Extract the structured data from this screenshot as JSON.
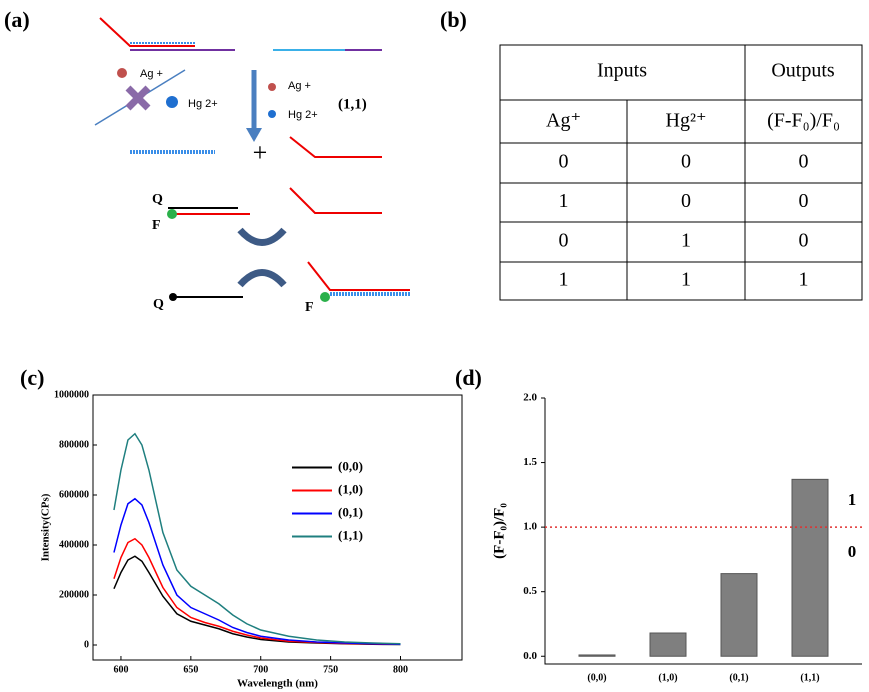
{
  "diagram": {
    "label": "(a)",
    "ion1": "Ag +",
    "ion2": "Hg 2+",
    "ion1b": "Ag +",
    "ion2b": "Hg 2+",
    "state": "(1,1)",
    "plus": "+",
    "q1": "Q",
    "f1": "F",
    "q2": "Q",
    "f2": "F"
  },
  "table": {
    "label": "(b)",
    "headers": [
      "Inputs",
      "Outputs"
    ],
    "subheaders": [
      "Ag⁺",
      "Hg²⁺",
      "(F-F₀)/F₀"
    ],
    "rows": [
      [
        0,
        0,
        0
      ],
      [
        1,
        0,
        0
      ],
      [
        0,
        1,
        0
      ],
      [
        1,
        1,
        1
      ]
    ]
  },
  "chart_data": [
    {
      "type": "line",
      "panel": "(c)",
      "x_label": "Wavelength (nm)",
      "y_label": "Intensity(CPs)",
      "x": [
        595,
        600,
        605,
        610,
        615,
        620,
        630,
        640,
        650,
        660,
        670,
        680,
        690,
        700,
        720,
        740,
        760,
        780,
        800
      ],
      "series": [
        {
          "name": "(0,0)",
          "color": "#000000",
          "values": [
            225000,
            290000,
            340000,
            355000,
            335000,
            290000,
            195000,
            125000,
            95000,
            80000,
            65000,
            45000,
            32000,
            22000,
            12000,
            8000,
            5000,
            3000,
            2000
          ]
        },
        {
          "name": "(1,0)",
          "color": "#ff0000",
          "values": [
            265000,
            350000,
            410000,
            425000,
            400000,
            350000,
            230000,
            150000,
            110000,
            90000,
            75000,
            55000,
            40000,
            28000,
            15000,
            10000,
            6000,
            4000,
            3000
          ]
        },
        {
          "name": "(0,1)",
          "color": "#0000ff",
          "values": [
            370000,
            480000,
            565000,
            585000,
            560000,
            490000,
            320000,
            200000,
            150000,
            125000,
            100000,
            70000,
            50000,
            35000,
            20000,
            12000,
            8000,
            5000,
            3000
          ]
        },
        {
          "name": "(1,1)",
          "color": "#1f7f7f",
          "values": [
            540000,
            700000,
            820000,
            845000,
            800000,
            700000,
            450000,
            300000,
            235000,
            200000,
            165000,
            120000,
            85000,
            60000,
            35000,
            20000,
            12000,
            8000,
            5000
          ]
        }
      ],
      "xlim": [
        580,
        844
      ],
      "xticks": [
        600,
        650,
        700,
        750,
        800
      ],
      "ylim": [
        -60000,
        1000000
      ],
      "yticks": [
        0,
        200000,
        400000,
        600000,
        800000,
        1000000
      ],
      "legend": "center-right"
    },
    {
      "type": "bar",
      "panel": "(d)",
      "y_label": "(F-F₀)/F₀",
      "categories": [
        "(0,0)",
        "(1,0)",
        "(0,1)",
        "(1,1)"
      ],
      "values": [
        0.01,
        0.18,
        0.64,
        1.37
      ],
      "color": "#7f7f7f",
      "ylim": [
        -0.06,
        2.0
      ],
      "yticks": [
        {
          "value": 0,
          "label": "0.0"
        },
        0.5,
        {
          "value": 1,
          "label": "1.0"
        },
        1.5,
        {
          "value": 2,
          "label": "2.0"
        }
      ],
      "threshold": 1,
      "threshold_color": "#e03030",
      "annotations": [
        "1",
        "0"
      ]
    }
  ]
}
